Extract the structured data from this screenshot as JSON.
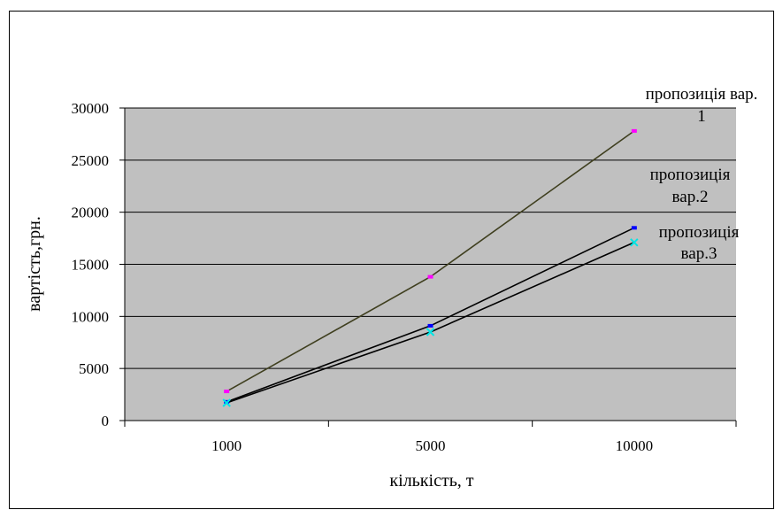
{
  "chart_data": {
    "type": "line",
    "categories": [
      "1000",
      "5000",
      "10000"
    ],
    "xlabel": "кількість, т",
    "ylabel": "вартість,грн.",
    "ylim": [
      0,
      30000
    ],
    "yticks": [
      "0",
      "5000",
      "10000",
      "15000",
      "20000",
      "25000",
      "30000"
    ],
    "grid": "horizontal",
    "plot_background": "#c0c0c0",
    "series": [
      {
        "label_lines": [
          "пропозиція вар.",
          "1"
        ],
        "values": [
          2800,
          13800,
          27800
        ],
        "line_color": "#3f3f1f",
        "marker_color": "#ff00ff"
      },
      {
        "label_lines": [
          "пропозиція",
          "вар.2"
        ],
        "values": [
          1800,
          9100,
          18500
        ],
        "line_color": "#000000",
        "marker_color": "#0000ff"
      },
      {
        "label_lines": [
          "пропозиція",
          "вар.3"
        ],
        "values": [
          1700,
          8500,
          17100
        ],
        "line_color": "#000000",
        "marker_color": "#00e5e5"
      }
    ]
  }
}
